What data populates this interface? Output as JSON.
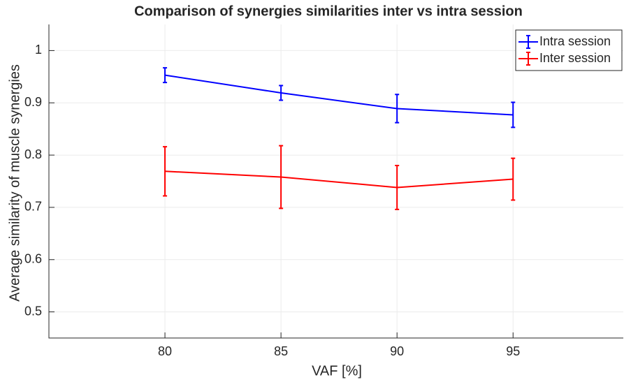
{
  "chart_data": {
    "type": "line",
    "title": "Comparison of synergies similarities inter vs intra session",
    "x_label": "VAF [%]",
    "y_label": "Average similarity of muscle synergies",
    "x": [
      80,
      85,
      90,
      95
    ],
    "series": [
      {
        "name": "Intra session",
        "color": "#0000ff",
        "values": [
          0.953,
          0.919,
          0.889,
          0.877
        ],
        "errors": [
          0.014,
          0.014,
          0.027,
          0.024
        ]
      },
      {
        "name": "Inter session",
        "color": "#ff0000",
        "values": [
          0.769,
          0.758,
          0.738,
          0.754
        ],
        "errors": [
          0.047,
          0.06,
          0.042,
          0.04
        ]
      }
    ],
    "xlim": [
      75,
      99.75
    ],
    "ylim": [
      0.45,
      1.05
    ],
    "xticks": [
      80,
      85,
      90,
      95
    ],
    "yticks": [
      0.5,
      0.6,
      0.7,
      0.8,
      0.9,
      1
    ],
    "grid": true,
    "legend": "top-right"
  }
}
